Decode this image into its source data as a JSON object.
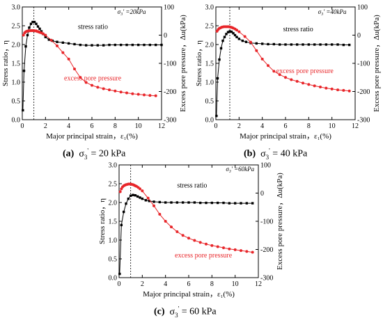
{
  "chart_data": [
    {
      "type": "line",
      "panel_label": "(a)",
      "caption_value": "= 20 kPa",
      "annotation": "σ₃' =20kPa",
      "xlabel": "Major principal strain，ε₁(%)",
      "ylabel": "Stress ratio，η",
      "y2label": "Excess pore pressure，Δu(kPa)",
      "xlim": [
        0,
        12
      ],
      "ylim": [
        0,
        3.0
      ],
      "y2lim": [
        -300,
        100
      ],
      "xticks": [
        0,
        2,
        4,
        6,
        8,
        10,
        12
      ],
      "yticks": [
        0.0,
        0.5,
        1.0,
        1.5,
        2.0,
        2.5,
        3.0
      ],
      "y2ticks": [
        -300,
        -200,
        -100,
        0,
        100
      ],
      "dashed_x": 1.0,
      "series": [
        {
          "name": "stress ratio",
          "axis": "left",
          "color": "#000000",
          "marker": "square",
          "x": [
            0.05,
            0.15,
            0.3,
            0.45,
            0.6,
            0.75,
            0.9,
            1.05,
            1.2,
            1.35,
            1.5,
            1.65,
            1.8,
            2.0,
            2.3,
            2.6,
            3.0,
            3.5,
            4.0,
            4.5,
            5.0,
            5.5,
            6.0,
            6.5,
            7.0,
            7.5,
            8.0,
            8.5,
            9.0,
            9.5,
            10.0,
            10.5,
            11.0,
            11.5,
            12.0
          ],
          "y": [
            0.25,
            1.3,
            1.95,
            2.25,
            2.45,
            2.55,
            2.6,
            2.6,
            2.55,
            2.48,
            2.42,
            2.35,
            2.28,
            2.2,
            2.13,
            2.1,
            2.07,
            2.05,
            2.03,
            2.01,
            1.99,
            1.98,
            1.98,
            1.98,
            1.98,
            1.99,
            1.99,
            1.99,
            1.99,
            1.99,
            1.99,
            1.99,
            1.99,
            1.99,
            1.99
          ]
        },
        {
          "name": "excess pore pressure",
          "axis": "right",
          "color": "#e8262a",
          "marker": "circle",
          "x": [
            0.1,
            0.2,
            0.3,
            0.4,
            0.5,
            0.6,
            0.7,
            0.8,
            0.9,
            1.0,
            1.1,
            1.2,
            1.3,
            1.4,
            1.5,
            1.65,
            1.8,
            2.0,
            2.5,
            3.0,
            3.5,
            4.0,
            4.5,
            5.0,
            5.5,
            6.0,
            6.5,
            7.0,
            7.5,
            8.0,
            8.5,
            9.0,
            9.5,
            10.0,
            10.5,
            11.0,
            11.5
          ],
          "y": [
            0,
            8,
            12,
            14,
            15,
            15,
            16,
            16,
            16,
            16,
            15,
            15,
            13,
            12,
            10,
            8,
            5,
            0,
            -18,
            -38,
            -62,
            -85,
            -120,
            -150,
            -168,
            -178,
            -185,
            -190,
            -194,
            -198,
            -202,
            -205,
            -208,
            -210,
            -212,
            -214,
            -215
          ]
        }
      ]
    },
    {
      "type": "line",
      "panel_label": "(b)",
      "caption_value": "= 40 kPa",
      "annotation": "σ₃' =40kPa",
      "xlabel": "Major principal strain，ε₁(%)",
      "ylabel": "Stress ratio，η",
      "y2label": "Excess pore pressure，Δu(kPa)",
      "xlim": [
        0,
        12
      ],
      "ylim": [
        0,
        3.0
      ],
      "y2lim": [
        -300,
        100
      ],
      "xticks": [
        0,
        2,
        4,
        6,
        8,
        10,
        12
      ],
      "yticks": [
        0.0,
        0.5,
        1.0,
        1.5,
        2.0,
        2.5,
        3.0
      ],
      "y2ticks": [
        -300,
        -200,
        -100,
        0,
        100
      ],
      "dashed_x": 1.2,
      "series": [
        {
          "name": "stress ratio",
          "axis": "left",
          "color": "#000000",
          "marker": "square",
          "x": [
            0.05,
            0.15,
            0.3,
            0.45,
            0.6,
            0.75,
            0.9,
            1.05,
            1.2,
            1.35,
            1.5,
            1.65,
            1.8,
            2.0,
            2.3,
            2.6,
            3.0,
            3.5,
            4.0,
            4.5,
            5.0,
            5.5,
            6.0,
            6.5,
            7.0,
            7.5,
            8.0,
            8.5,
            9.0,
            9.5,
            10.0,
            10.5,
            11.0,
            11.5
          ],
          "y": [
            0.1,
            1.1,
            1.6,
            1.9,
            2.1,
            2.2,
            2.28,
            2.33,
            2.35,
            2.34,
            2.3,
            2.25,
            2.2,
            2.15,
            2.1,
            2.07,
            2.04,
            2.03,
            2.02,
            2.01,
            2.01,
            2.0,
            2.0,
            2.0,
            2.0,
            2.0,
            2.0,
            2.0,
            2.0,
            2.0,
            2.0,
            2.0,
            1.99,
            1.99
          ]
        },
        {
          "name": "excess pore pressure",
          "axis": "right",
          "color": "#e8262a",
          "marker": "circle",
          "x": [
            0.1,
            0.2,
            0.3,
            0.4,
            0.5,
            0.6,
            0.7,
            0.8,
            0.9,
            1.0,
            1.1,
            1.2,
            1.3,
            1.4,
            1.5,
            1.65,
            1.8,
            2.0,
            2.5,
            3.0,
            3.5,
            4.0,
            4.5,
            5.0,
            5.5,
            6.0,
            6.5,
            7.0,
            7.5,
            8.0,
            8.5,
            9.0,
            9.5,
            10.0,
            10.5,
            11.0,
            11.5
          ],
          "y": [
            14,
            20,
            24,
            26,
            28,
            29,
            30,
            30,
            30,
            30,
            30,
            29,
            28,
            27,
            25,
            22,
            18,
            12,
            -5,
            -25,
            -55,
            -85,
            -108,
            -128,
            -140,
            -150,
            -158,
            -164,
            -170,
            -175,
            -180,
            -184,
            -188,
            -191,
            -194,
            -196,
            -198
          ]
        }
      ]
    },
    {
      "type": "line",
      "panel_label": "(c)",
      "caption_value": "= 60 kPa",
      "annotation": "σ₃' =60kPa",
      "xlabel": "Major principal strain，ε₁(%)",
      "ylabel": "Stress ratio，η",
      "y2label": "Excess pore pressure，Δu(kPa)",
      "xlim": [
        0,
        12
      ],
      "ylim": [
        0,
        3.0
      ],
      "y2lim": [
        -300,
        100
      ],
      "xticks": [
        0,
        2,
        4,
        6,
        8,
        10,
        12
      ],
      "yticks": [
        0.0,
        0.5,
        1.0,
        1.5,
        2.0,
        2.5,
        3.0
      ],
      "y2ticks": [
        -300,
        -200,
        -100,
        0,
        100
      ],
      "dashed_x": 1.0,
      "series": [
        {
          "name": "stress ratio",
          "axis": "left",
          "color": "#000000",
          "marker": "square",
          "x": [
            0.05,
            0.2,
            0.4,
            0.6,
            0.8,
            1.0,
            1.2,
            1.4,
            1.6,
            1.8,
            2.0,
            2.3,
            2.6,
            3.0,
            3.5,
            4.0,
            4.5,
            5.0,
            5.5,
            6.0,
            6.5,
            7.0,
            7.5,
            8.0,
            8.5,
            9.0,
            9.5,
            10.0,
            10.5,
            11.0,
            11.5
          ],
          "y": [
            0.1,
            1.4,
            1.75,
            1.97,
            2.1,
            2.18,
            2.2,
            2.19,
            2.16,
            2.13,
            2.1,
            2.06,
            2.04,
            2.02,
            2.01,
            2.0,
            2.0,
            2.0,
            2.0,
            2.0,
            2.0,
            1.99,
            1.99,
            1.99,
            1.99,
            1.99,
            1.98,
            1.98,
            1.98,
            1.98,
            1.98
          ]
        },
        {
          "name": "excess pore pressure",
          "axis": "right",
          "color": "#e8262a",
          "marker": "circle",
          "x": [
            0.1,
            0.2,
            0.3,
            0.4,
            0.5,
            0.6,
            0.7,
            0.8,
            0.9,
            1.0,
            1.1,
            1.2,
            1.3,
            1.4,
            1.5,
            1.65,
            1.8,
            2.0,
            2.5,
            3.0,
            3.5,
            4.0,
            4.5,
            5.0,
            5.5,
            6.0,
            6.5,
            7.0,
            7.5,
            8.0,
            8.5,
            9.0,
            9.5,
            10.0,
            10.5,
            11.0,
            11.5
          ],
          "y": [
            5,
            15,
            22,
            26,
            28,
            30,
            31,
            32,
            32,
            32,
            31,
            30,
            28,
            26,
            24,
            20,
            15,
            8,
            -18,
            -45,
            -75,
            -100,
            -120,
            -137,
            -150,
            -160,
            -168,
            -175,
            -181,
            -186,
            -190,
            -194,
            -198,
            -201,
            -204,
            -207,
            -210
          ]
        }
      ]
    }
  ]
}
